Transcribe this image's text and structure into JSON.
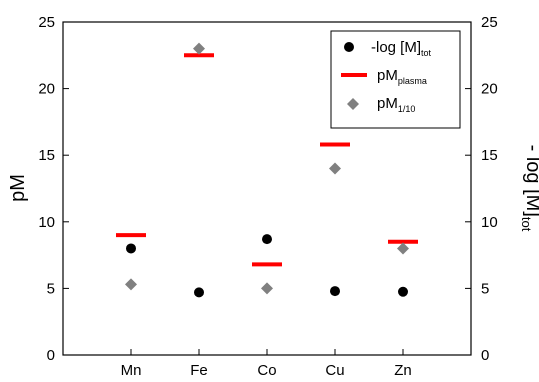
{
  "chart_data": {
    "type": "scatter",
    "categories": [
      "Mn",
      "Fe",
      "Co",
      "Cu",
      "Zn"
    ],
    "ylim": [
      0,
      25
    ],
    "yticks": [
      0,
      5,
      10,
      15,
      20,
      25
    ],
    "ylabel_left": "pM",
    "ylabel_right": {
      "main": "- log [M]",
      "sub": "tot"
    },
    "grid": false,
    "legend_position": "top-right",
    "series": [
      {
        "name": {
          "main": "-log [M]",
          "sub": "tot"
        },
        "marker": "circle",
        "color": "#000000",
        "values": [
          8.0,
          4.7,
          8.7,
          4.8,
          4.75
        ]
      },
      {
        "name": {
          "main": "pM",
          "sub": "plasma"
        },
        "marker": "dash",
        "color": "#ff0000",
        "values": [
          9.0,
          22.5,
          6.8,
          15.8,
          8.5
        ]
      },
      {
        "name": {
          "main": "pM",
          "sub": "1/10"
        },
        "marker": "diamond",
        "color": "#808080",
        "values": [
          5.3,
          23.0,
          5.0,
          14.0,
          8.0
        ]
      }
    ]
  }
}
